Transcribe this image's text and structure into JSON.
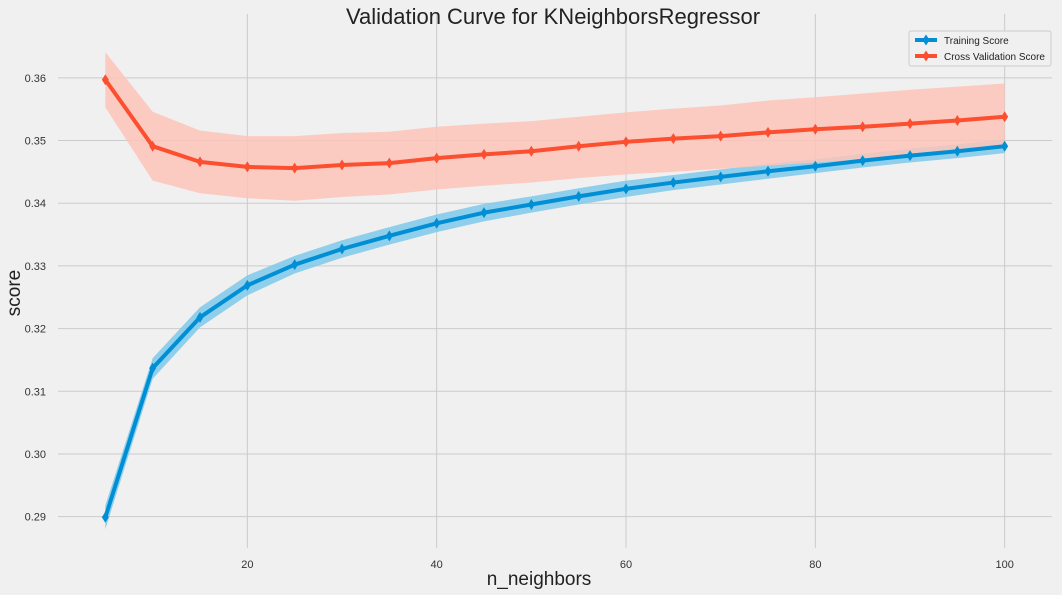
{
  "chart_data": {
    "type": "line",
    "title": "Validation Curve for KNeighborsRegressor",
    "xlabel": "n_neighbors",
    "ylabel": "score",
    "xlim": [
      0,
      105
    ],
    "ylim": [
      0.285,
      0.367
    ],
    "xticks": [
      20,
      40,
      60,
      80,
      100
    ],
    "yticks": [
      0.29,
      0.3,
      0.31,
      0.32,
      0.33,
      0.34,
      0.35,
      0.36
    ],
    "ytick_labels": [
      "0.29",
      "0.30",
      "0.31",
      "0.32",
      "0.33",
      "0.34",
      "0.35",
      "0.36"
    ],
    "grid": true,
    "legend": "top-right",
    "x": [
      5,
      10,
      15,
      20,
      25,
      30,
      35,
      40,
      45,
      50,
      55,
      60,
      65,
      70,
      75,
      80,
      85,
      90,
      95,
      100
    ],
    "series": [
      {
        "name": "Training Score",
        "color": "#008fd5",
        "band_color": "#7fc9ea",
        "values": [
          0.2899,
          0.3137,
          0.3218,
          0.3269,
          0.3302,
          0.3327,
          0.3348,
          0.3368,
          0.3385,
          0.3398,
          0.3411,
          0.3423,
          0.3433,
          0.3442,
          0.3451,
          0.3459,
          0.3468,
          0.3476,
          0.3483,
          0.3491
        ],
        "band_lower": [
          0.288,
          0.312,
          0.3202,
          0.3253,
          0.3288,
          0.3313,
          0.3334,
          0.3354,
          0.3371,
          0.3385,
          0.3398,
          0.341,
          0.3421,
          0.343,
          0.3439,
          0.3448,
          0.3457,
          0.3465,
          0.3472,
          0.348
        ],
        "band_upper": [
          0.2918,
          0.3153,
          0.3234,
          0.3285,
          0.3316,
          0.3341,
          0.3362,
          0.3382,
          0.3399,
          0.3411,
          0.3424,
          0.3436,
          0.3445,
          0.3454,
          0.3463,
          0.347,
          0.3479,
          0.3487,
          0.3494,
          0.3502
        ]
      },
      {
        "name": "Cross Validation Score",
        "color": "#fc4f30",
        "band_color": "#fdc4ba",
        "values": [
          0.3597,
          0.3491,
          0.3466,
          0.3458,
          0.3456,
          0.3461,
          0.3464,
          0.3472,
          0.3478,
          0.3483,
          0.3491,
          0.3498,
          0.3503,
          0.3507,
          0.3513,
          0.3518,
          0.3522,
          0.3527,
          0.3532,
          0.3538
        ],
        "band_lower": [
          0.3553,
          0.3436,
          0.3416,
          0.3408,
          0.3404,
          0.341,
          0.3414,
          0.3422,
          0.3428,
          0.3433,
          0.344,
          0.3446,
          0.345,
          0.3455,
          0.346,
          0.3465,
          0.347,
          0.3475,
          0.348,
          0.3487
        ],
        "band_upper": [
          0.3641,
          0.3546,
          0.3516,
          0.3507,
          0.3507,
          0.3512,
          0.3514,
          0.3522,
          0.3527,
          0.3531,
          0.3538,
          0.3545,
          0.3551,
          0.3556,
          0.3564,
          0.3569,
          0.3575,
          0.3581,
          0.3586,
          0.3591
        ]
      }
    ]
  }
}
